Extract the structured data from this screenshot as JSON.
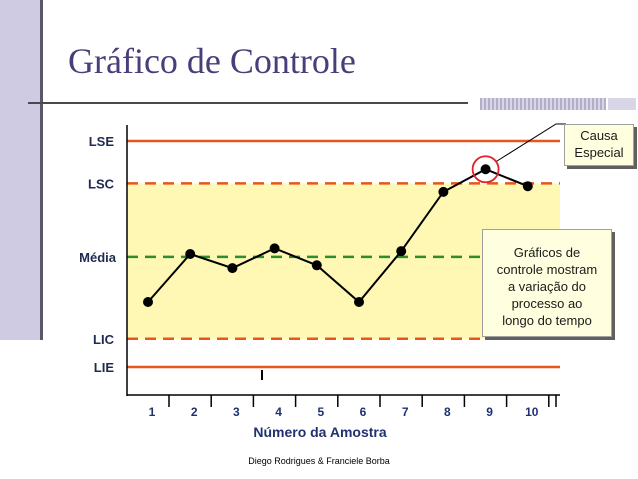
{
  "slide": {
    "title": "Gráfico de Controle",
    "footer": "Diego Rodrigues & Franciele Borba"
  },
  "chart_data": {
    "type": "line",
    "title": "",
    "xlabel": "Número da Amostra",
    "ylabel": "",
    "categories": [
      "1",
      "2",
      "3",
      "4",
      "5",
      "6",
      "7",
      "8",
      "9",
      "10"
    ],
    "series": [
      {
        "values": [
          1.3,
          3.0,
          2.5,
          3.2,
          2.6,
          1.3,
          3.1,
          5.2,
          6.0,
          5.4
        ]
      }
    ],
    "ylim": [
      -1.5,
      7.5
    ],
    "control_lines": [
      {
        "label": "LSE",
        "value": 7.0,
        "style": "solid",
        "color": "#e8561c"
      },
      {
        "label": "LSC",
        "value": 5.5,
        "style": "dashed",
        "color": "#e8561c"
      },
      {
        "label": "Média",
        "value": 2.9,
        "style": "dashed",
        "color": "#2e8b2e"
      },
      {
        "label": "LIC",
        "value": 0.0,
        "style": "dashed",
        "color": "#e8561c"
      },
      {
        "label": "LIE",
        "value": -1.0,
        "style": "solid",
        "color": "#e8561c"
      }
    ],
    "band_color": "#fff8b4",
    "highlight_index": 8,
    "annotations": {
      "cause_lines": [
        "Causa",
        "Especial"
      ],
      "note_lines": [
        "Gráficos de",
        "controle mostram",
        "a variação do",
        "processo ao",
        "longo do tempo"
      ]
    }
  }
}
